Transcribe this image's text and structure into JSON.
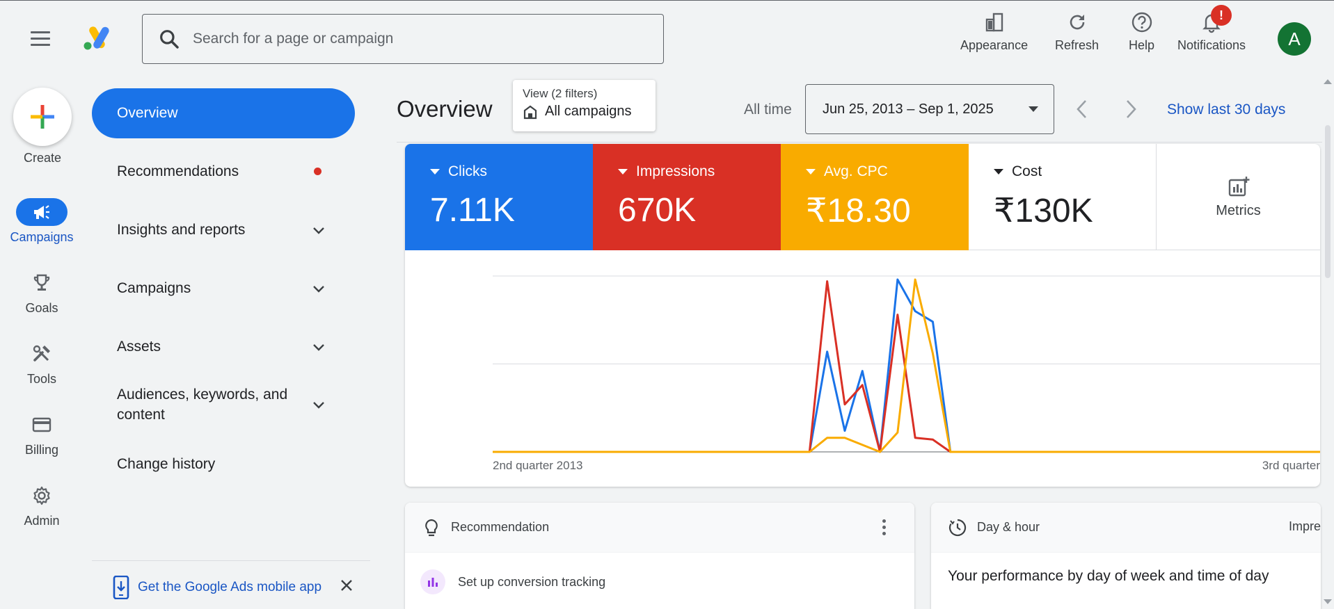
{
  "topbar": {
    "search_placeholder": "Search for a page or campaign",
    "buttons": [
      {
        "label": "Appearance",
        "icon": "appearance-icon"
      },
      {
        "label": "Refresh",
        "icon": "refresh-icon"
      },
      {
        "label": "Help",
        "icon": "help-icon"
      },
      {
        "label": "Notifications",
        "icon": "bell-icon"
      }
    ],
    "notification_badge": "!",
    "avatar_letter": "A"
  },
  "rail": {
    "create_label": "Create",
    "items": [
      {
        "label": "Campaigns",
        "icon": "megaphone-icon",
        "active": true
      },
      {
        "label": "Goals",
        "icon": "trophy-icon"
      },
      {
        "label": "Tools",
        "icon": "tools-icon"
      },
      {
        "label": "Billing",
        "icon": "credit-card-icon"
      },
      {
        "label": "Admin",
        "icon": "gear-icon"
      }
    ]
  },
  "nav": {
    "overview": "Overview",
    "items": [
      {
        "label": "Recommendations"
      },
      {
        "label": "Insights and reports"
      },
      {
        "label": "Campaigns"
      },
      {
        "label": "Assets"
      },
      {
        "label": "Audiences, keywords, and content"
      },
      {
        "label": "Change history"
      }
    ],
    "mobile_app": "Get the Google Ads mobile app"
  },
  "header": {
    "title": "Overview",
    "view_filters": "View (2 filters)",
    "view_scope": "All campaigns",
    "range_label": "All time",
    "date_range": "Jun 25, 2013 – Sep 1, 2025",
    "show_last": "Show last 30 days"
  },
  "metrics": [
    {
      "name": "Clicks",
      "value": "7.11K",
      "color": "#1a73e8"
    },
    {
      "name": "Impressions",
      "value": "670K",
      "color": "#d93025"
    },
    {
      "name": "Avg. CPC",
      "value": "₹18.30",
      "color": "#f9ab00"
    },
    {
      "name": "Cost",
      "value": "₹130K",
      "color": "#ffffff"
    }
  ],
  "metrics_button": "Metrics",
  "chart_data": {
    "type": "line",
    "x_tick_labels": [
      "2nd quarter 2013",
      "3rd quarter"
    ],
    "x": [
      0,
      1,
      2,
      3,
      4,
      5,
      6,
      7,
      8,
      9,
      10,
      11,
      12,
      13,
      14,
      15,
      16,
      17,
      18,
      19,
      20,
      21,
      22,
      23,
      24,
      25,
      26,
      27,
      28,
      29,
      30,
      31,
      32,
      33,
      34,
      35,
      36,
      37,
      38,
      39,
      40,
      41,
      42,
      43,
      44,
      45,
      46,
      47
    ],
    "series": [
      {
        "color": "#1a73e8",
        "values": [
          0,
          0,
          0,
          0,
          0,
          0,
          0,
          0,
          0,
          0,
          0,
          0,
          0,
          0,
          0,
          0,
          0,
          0,
          0,
          0.57,
          0.12,
          0.46,
          0,
          0.98,
          0.8,
          0.74,
          0,
          0,
          0,
          0,
          0,
          0,
          0,
          0,
          0,
          0,
          0,
          0,
          0,
          0,
          0,
          0,
          0,
          0,
          0,
          0,
          0,
          0
        ]
      },
      {
        "color": "#d93025",
        "values": [
          0,
          0,
          0,
          0,
          0,
          0,
          0,
          0,
          0,
          0,
          0,
          0,
          0,
          0,
          0,
          0,
          0,
          0,
          0,
          0.97,
          0.27,
          0.38,
          0,
          0.78,
          0.08,
          0.07,
          0,
          0,
          0,
          0,
          0,
          0,
          0,
          0,
          0,
          0,
          0,
          0,
          0,
          0,
          0,
          0,
          0,
          0,
          0,
          0,
          0,
          0
        ]
      },
      {
        "color": "#f9ab00",
        "values": [
          0,
          0,
          0,
          0,
          0,
          0,
          0,
          0,
          0,
          0,
          0,
          0,
          0,
          0,
          0,
          0,
          0,
          0,
          0,
          0.08,
          0.08,
          0.04,
          0,
          0.11,
          0.98,
          0.56,
          0,
          0,
          0,
          0,
          0,
          0,
          0,
          0,
          0,
          0,
          0,
          0,
          0,
          0,
          0,
          0,
          0,
          0,
          0,
          0,
          0,
          0
        ]
      }
    ],
    "grid": true
  },
  "cards": {
    "recommendation_title": "Recommendation",
    "recommendation_item": "Set up conversion tracking",
    "day_title": "Day & hour",
    "day_metric": "Impre",
    "day_text": "Your performance by day of week and time of day"
  }
}
